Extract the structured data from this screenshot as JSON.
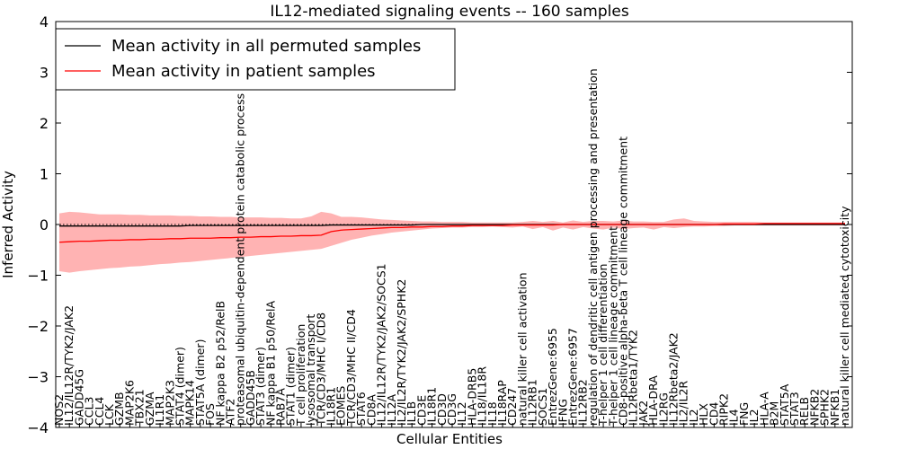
{
  "chart_data": {
    "type": "line",
    "title": "IL12-mediated signaling events -- 160 samples",
    "xlabel": "Cellular Entities",
    "ylabel": "Inferred Activity",
    "ylim": [
      -4,
      4
    ],
    "yticks": [
      -4,
      -3,
      -2,
      -1,
      0,
      1,
      2,
      3,
      4
    ],
    "legend": {
      "placement": "top-left",
      "entries": [
        {
          "name": "Mean activity in all permuted samples",
          "color": "#000000"
        },
        {
          "name": "Mean activity in patient samples",
          "color": "#ff0000"
        }
      ]
    },
    "categories": [
      "NOS2",
      "IL12/IL12R/TYK2/JAK2",
      "GADD45G",
      "CCL3",
      "CCL4",
      "LCK",
      "GZMB",
      "MAP2K6",
      "TBX21",
      "GZMA",
      "IL1R1",
      "MAP2K3",
      "STAT4 (dimer)",
      "MAPK14",
      "STAT5A (dimer)",
      "FOS",
      "NF kappa B2 p52/RelB",
      "ATF2",
      "proteasomal ubiquitin-dependent protein catabolic process",
      "GADD45B",
      "STAT3 (dimer)",
      "NF kappa B1 p50/RelA",
      "RAB7A",
      "STAT1 (dimer)",
      "T cell proliferation",
      "lysosomal transport",
      "TCR/CD3/MHC I/CD8",
      "IL18R1",
      "EOMES",
      "TCR/CD3/MHC II/CD4",
      "STAT6",
      "CD8A",
      "IL12/IL12R/TYK2/JAK2/SOCS1",
      "IL12A",
      "IL2/IL2R/TYK2/JAK2/SPHK2",
      "IL1B",
      "CD3E",
      "IL18R1",
      "CD3D",
      "CD3G",
      "IL12",
      "HLA-DRB5",
      "IL18/IL18R",
      "IL18",
      "IL18RAP",
      "CD247",
      "natural killer cell activation",
      "IL12RB1",
      "SOCS1",
      "EntrezGene:6955",
      "IFNG",
      "EntrezGene:6957",
      "IL12RB2",
      "regulation of dendritic cell antigen processing and presentation",
      "T-helper 1 cell differentiation",
      "T-helper 1 cell lineage commitment",
      "CD8-positive alpha-beta T cell lineage commitment",
      "IL12Rbeta1/TYK2",
      "JAK2",
      "HLA-DRA",
      "IL2RG",
      "IL12Rbeta2/JAK2",
      "IL2/IL2R",
      "IL2",
      "HLX",
      "CD4",
      "RIPK2",
      "IL4",
      "FNG",
      "IL2",
      "HLA-A",
      "B2M",
      "STAT5A",
      "STAT3",
      "RELB",
      "NFKB2",
      "SPHK2",
      "NFKB1",
      "natural killer cell mediated cytotoxicity"
    ],
    "series": [
      {
        "name": "Mean activity in all permuted samples",
        "color": "#000000",
        "values": [
          -0.03,
          -0.03,
          -0.03,
          -0.03,
          -0.03,
          -0.03,
          -0.03,
          -0.03,
          -0.03,
          -0.03,
          -0.03,
          -0.03,
          -0.03,
          -0.02,
          -0.02,
          -0.02,
          -0.02,
          -0.02,
          -0.02,
          -0.02,
          -0.02,
          -0.02,
          -0.02,
          -0.02,
          -0.02,
          -0.02,
          -0.02,
          -0.01,
          -0.01,
          -0.01,
          -0.01,
          -0.01,
          -0.01,
          -0.01,
          -0.01,
          -0.01,
          0.0,
          0.0,
          0.0,
          0.0,
          0.0,
          0.0,
          0.0,
          0.0,
          0.0,
          0.0,
          0.0,
          0.0,
          0.0,
          0.0,
          0.0,
          0.0,
          0.0,
          0.0,
          0.0,
          0.0,
          0.0,
          0.0,
          0.0,
          0.0,
          0.0,
          0.0,
          0.0,
          0.0,
          0.0,
          0.0,
          0.0,
          0.0,
          0.0,
          0.0,
          0.0,
          0.0,
          0.0,
          0.0,
          0.0,
          0.0,
          0.0,
          0.0,
          0.0
        ]
      },
      {
        "name": "Mean activity in patient samples",
        "color": "#ff0000",
        "values": [
          -0.35,
          -0.34,
          -0.33,
          -0.33,
          -0.32,
          -0.31,
          -0.31,
          -0.3,
          -0.3,
          -0.29,
          -0.29,
          -0.28,
          -0.28,
          -0.27,
          -0.27,
          -0.27,
          -0.26,
          -0.26,
          -0.25,
          -0.25,
          -0.24,
          -0.24,
          -0.23,
          -0.23,
          -0.22,
          -0.22,
          -0.21,
          -0.14,
          -0.11,
          -0.1,
          -0.09,
          -0.08,
          -0.07,
          -0.06,
          -0.06,
          -0.05,
          -0.05,
          -0.04,
          -0.04,
          -0.03,
          -0.03,
          -0.02,
          -0.02,
          -0.02,
          -0.02,
          -0.01,
          -0.01,
          -0.01,
          -0.01,
          -0.01,
          0.0,
          0.0,
          0.0,
          0.0,
          0.0,
          0.0,
          0.0,
          0.0,
          0.0,
          0.0,
          0.0,
          0.0,
          0.0,
          0.0,
          0.0,
          0.0,
          0.01,
          0.01,
          0.01,
          0.01,
          0.02,
          0.02,
          0.02,
          0.02,
          0.02,
          0.02,
          0.02,
          0.02,
          0.02
        ]
      }
    ],
    "band_upper": [
      0.22,
      0.25,
      0.24,
      0.22,
      0.2,
      0.2,
      0.2,
      0.19,
      0.19,
      0.18,
      0.18,
      0.18,
      0.17,
      0.17,
      0.16,
      0.16,
      0.15,
      0.15,
      0.14,
      0.14,
      0.14,
      0.13,
      0.13,
      0.12,
      0.12,
      0.16,
      0.25,
      0.22,
      0.15,
      0.15,
      0.14,
      0.12,
      0.1,
      0.09,
      0.08,
      0.07,
      0.06,
      0.06,
      0.05,
      0.05,
      0.05,
      0.04,
      0.04,
      0.04,
      0.04,
      0.04,
      0.05,
      0.07,
      0.05,
      0.07,
      0.04,
      0.08,
      0.05,
      0.07,
      0.07,
      0.06,
      0.08,
      0.06,
      0.06,
      0.05,
      0.05,
      0.1,
      0.12,
      0.07,
      0.06,
      0.05,
      0.05,
      0.05,
      0.05,
      0.05,
      0.04,
      0.04,
      0.04,
      0.04,
      0.04,
      0.04,
      0.04,
      0.04,
      0.04
    ],
    "band_lower": [
      -0.92,
      -0.95,
      -0.92,
      -0.9,
      -0.88,
      -0.86,
      -0.85,
      -0.83,
      -0.82,
      -0.8,
      -0.78,
      -0.77,
      -0.75,
      -0.74,
      -0.72,
      -0.7,
      -0.68,
      -0.66,
      -0.64,
      -0.62,
      -0.6,
      -0.58,
      -0.56,
      -0.54,
      -0.52,
      -0.5,
      -0.48,
      -0.42,
      -0.36,
      -0.3,
      -0.26,
      -0.22,
      -0.19,
      -0.16,
      -0.14,
      -0.12,
      -0.1,
      -0.08,
      -0.07,
      -0.06,
      -0.06,
      -0.05,
      -0.05,
      -0.04,
      -0.05,
      -0.06,
      -0.04,
      -0.09,
      -0.05,
      -0.12,
      -0.06,
      -0.1,
      -0.05,
      -0.08,
      -0.1,
      -0.06,
      -0.09,
      -0.07,
      -0.06,
      -0.1,
      -0.05,
      -0.07,
      -0.05,
      -0.04,
      -0.04,
      -0.03,
      -0.03,
      -0.02,
      -0.02,
      -0.02,
      -0.02,
      -0.02,
      -0.02,
      -0.02,
      -0.02,
      -0.02,
      -0.02,
      -0.02,
      -0.02
    ],
    "band_color": "#ff9999",
    "baseline_color": "#000000"
  }
}
